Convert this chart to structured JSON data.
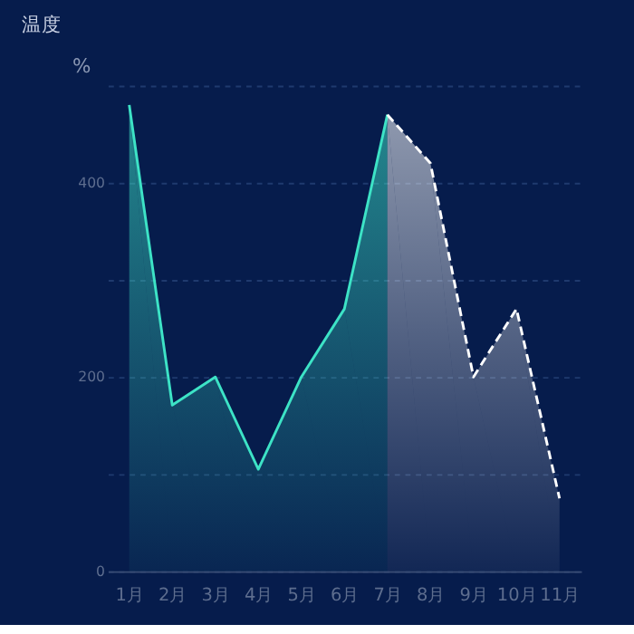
{
  "chart_data": {
    "type": "area",
    "title": "温度",
    "ylabel": "%",
    "categories": [
      "1月",
      "2月",
      "3月",
      "4月",
      "5月",
      "6月",
      "7月",
      "8月",
      "9月",
      "10月",
      "11月"
    ],
    "series": [
      {
        "color": "#3de3c6",
        "line_style": "solid",
        "values": [
          480,
          171,
          200,
          105,
          200,
          270,
          470,
          null,
          null,
          null,
          null
        ]
      },
      {
        "color": "#ffffff",
        "line_style": "dashed",
        "values": [
          null,
          null,
          null,
          null,
          null,
          null,
          470,
          420,
          200,
          270,
          75
        ]
      }
    ],
    "ylim": [
      0,
      500
    ],
    "yticks": [
      0,
      {
        "value": 100,
        "label": null
      },
      200,
      {
        "value": 300,
        "label": null
      },
      400,
      {
        "value": 500,
        "label": null
      }
    ],
    "grid": "y",
    "marker": "none"
  }
}
